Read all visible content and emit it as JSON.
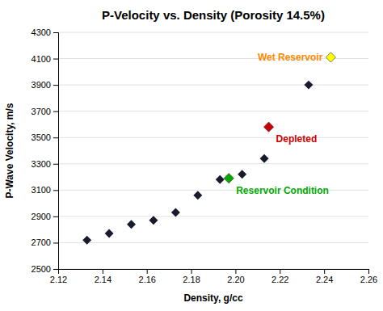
{
  "chart_data": {
    "type": "scatter",
    "title": "P-Velocity vs. Density (Porosity 14.5%)",
    "xlabel": "Density, g/cc",
    "ylabel": "P-Wave Velocity, m/s",
    "xlim": [
      2.12,
      2.26
    ],
    "ylim": [
      2500,
      4300
    ],
    "xticks": [
      2.12,
      2.14,
      2.16,
      2.18,
      {
        "value": 2.2,
        "label": "2.20"
      },
      2.22,
      2.24,
      2.26
    ],
    "yticks": [
      2500,
      2700,
      2900,
      3100,
      3300,
      3500,
      3700,
      3900,
      4100,
      4300
    ],
    "grid": true,
    "series": [
      {
        "x": [
          2.133,
          2.143,
          2.153,
          2.163,
          2.173,
          2.183,
          2.193,
          2.203,
          2.213,
          2.233
        ],
        "values": [
          2720,
          2770,
          2840,
          2870,
          2930,
          3060,
          3180,
          3220,
          3340,
          3900
        ],
        "color": "#1a1a2e",
        "marker": "diamond"
      },
      {
        "x": [
          2.197
        ],
        "values": [
          3190
        ],
        "color": "#00aa00",
        "marker": "diamond"
      },
      {
        "x": [
          2.215
        ],
        "values": [
          3580
        ],
        "color": "#cc0000",
        "marker": "diamond"
      },
      {
        "x": [
          2.243
        ],
        "values": [
          4110
        ],
        "color": "#ffff00",
        "marker": "diamond"
      }
    ],
    "annotations": [
      {
        "text": "Wet Reservoir",
        "x": 2.243,
        "y": 4110,
        "color": "#ff8800"
      },
      {
        "text": "Depleted",
        "x": 2.215,
        "y": 3580,
        "color": "#cc0000"
      },
      {
        "text": "Reservoir Condition",
        "x": 2.197,
        "y": 3190,
        "color": "#00aa00"
      }
    ]
  }
}
